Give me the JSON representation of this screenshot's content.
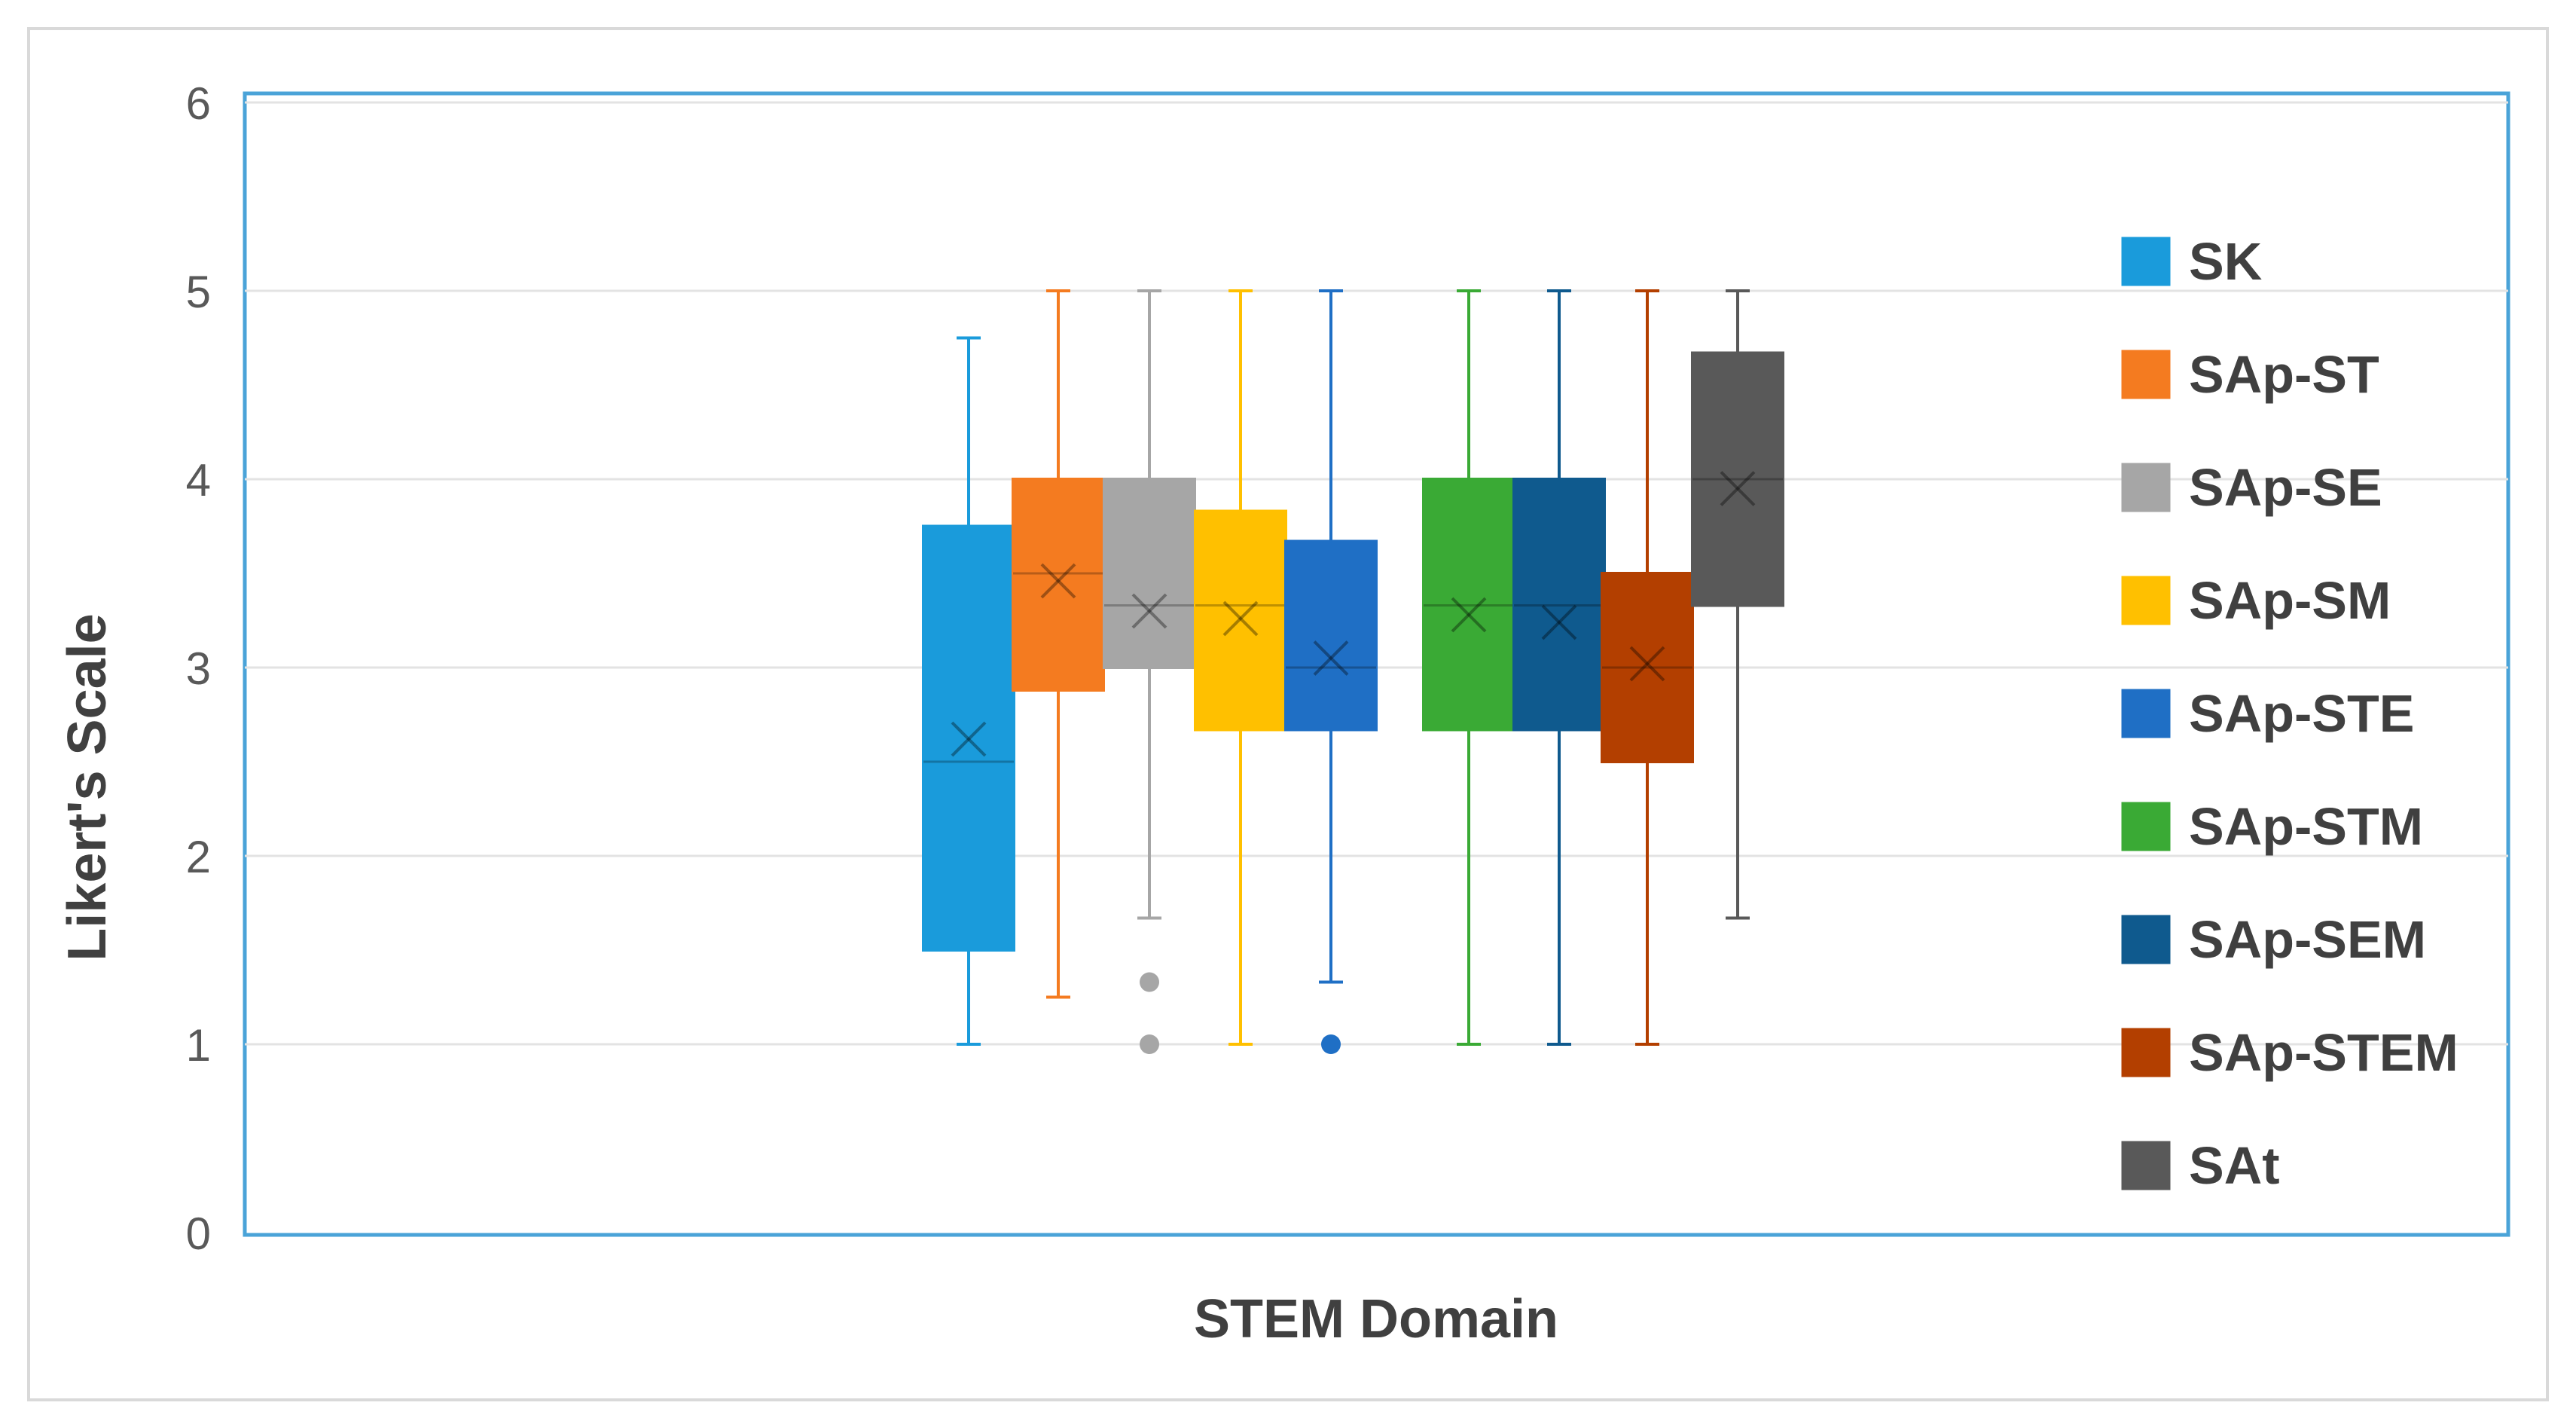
{
  "chart_data": {
    "type": "box",
    "title": "",
    "xlabel": "STEM Domain",
    "ylabel": "Likert's Scale",
    "ylim": [
      0,
      6
    ],
    "yticks": [
      0,
      1,
      2,
      3,
      4,
      5,
      6
    ],
    "grid": true,
    "legend_position": "right",
    "series": [
      {
        "name": "SK",
        "color": "#1a9bdb",
        "min": 1.0,
        "q1": 1.5,
        "median": 2.5,
        "q3": 3.75,
        "max": 4.75,
        "mean": 2.62,
        "outliers": []
      },
      {
        "name": "SAp-ST",
        "color": "#f47b20",
        "min": 1.25,
        "q1": 2.88,
        "median": 3.5,
        "q3": 4.0,
        "max": 5.0,
        "mean": 3.46,
        "outliers": []
      },
      {
        "name": "SAp-SE",
        "color": "#a6a6a6",
        "min": 1.67,
        "q1": 3.0,
        "median": 3.33,
        "q3": 4.0,
        "max": 5.0,
        "mean": 3.3,
        "outliers": [
          1.33,
          1.0
        ]
      },
      {
        "name": "SAp-SM",
        "color": "#ffc000",
        "min": 1.0,
        "q1": 2.67,
        "median": 3.33,
        "q3": 3.83,
        "max": 5.0,
        "mean": 3.26,
        "outliers": []
      },
      {
        "name": "SAp-STE",
        "color": "#1f6fc5",
        "min": 1.33,
        "q1": 2.67,
        "median": 3.0,
        "q3": 3.67,
        "max": 5.0,
        "mean": 3.05,
        "outliers": [
          1.0
        ]
      },
      {
        "name": "SAp-STM",
        "color": "#3aaa35",
        "min": 1.0,
        "q1": 2.67,
        "median": 3.33,
        "q3": 4.0,
        "max": 5.0,
        "mean": 3.28,
        "outliers": []
      },
      {
        "name": "SAp-SEM",
        "color": "#0f5a8e",
        "min": 1.0,
        "q1": 2.67,
        "median": 3.33,
        "q3": 4.0,
        "max": 5.0,
        "mean": 3.24,
        "outliers": []
      },
      {
        "name": "SAp-STEM",
        "color": "#b33f00",
        "min": 1.0,
        "q1": 2.5,
        "median": 3.0,
        "q3": 3.5,
        "max": 5.0,
        "mean": 3.02,
        "outliers": []
      },
      {
        "name": "SAt",
        "color": "#595959",
        "min": 1.67,
        "q1": 3.33,
        "median": 4.0,
        "q3": 4.67,
        "max": 5.0,
        "mean": 3.95,
        "outliers": []
      }
    ]
  }
}
